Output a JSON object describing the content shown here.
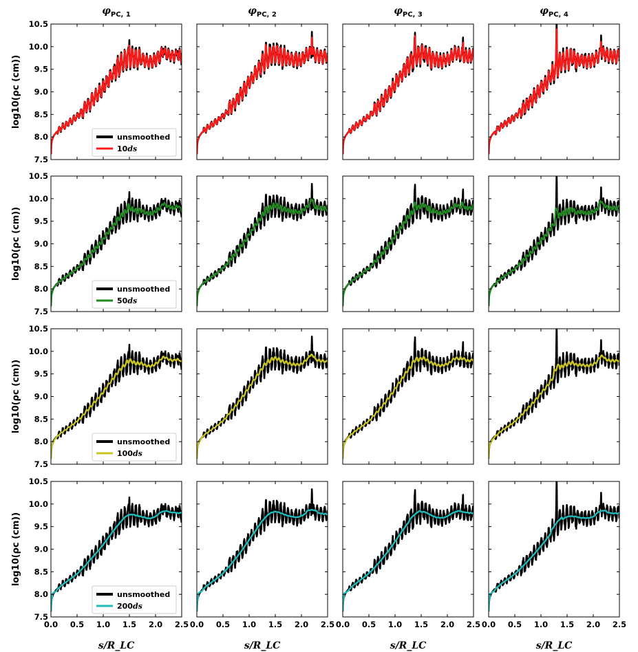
{
  "chart_data": {
    "type": "line",
    "layout": "4x4 grid of subplots",
    "x_label": "s/R_LC",
    "y_label": "log10(ρc (cm))",
    "xlim": [
      0.0,
      2.5
    ],
    "ylim": [
      7.5,
      10.5
    ],
    "x_ticks": [
      "0.0",
      "0.5",
      "1.0",
      "1.5",
      "2.0",
      "2.5"
    ],
    "y_ticks": [
      "7.5",
      "8.0",
      "8.5",
      "9.0",
      "9.5",
      "10.0",
      "10.5"
    ],
    "columns": [
      {
        "symbol": "φ",
        "sub": "PC, 1",
        "base_shift": 0.0,
        "spikes": [
          [
            1.5,
            0.3
          ],
          [
            2.15,
            0.2
          ],
          [
            2.42,
            0.2
          ]
        ]
      },
      {
        "symbol": "φ",
        "sub": "PC, 2",
        "base_shift": 0.12,
        "spikes": [
          [
            1.32,
            0.2
          ],
          [
            2.2,
            0.6
          ],
          [
            1.9,
            0.15
          ]
        ]
      },
      {
        "symbol": "φ",
        "sub": "PC, 3",
        "base_shift": 0.08,
        "spikes": [
          [
            1.38,
            0.4
          ],
          [
            1.55,
            0.3
          ],
          [
            2.3,
            0.35
          ]
        ]
      },
      {
        "symbol": "φ",
        "sub": "PC, 4",
        "base_shift": -0.05,
        "spikes": [
          [
            1.3,
            1.0
          ],
          [
            2.15,
            0.45
          ],
          [
            1.6,
            0.15
          ]
        ]
      }
    ],
    "rows": [
      {
        "legend": [
          "unsmoothed",
          "10",
          "ds"
        ],
        "color": "#ff1a1a",
        "window": 10
      },
      {
        "legend": [
          "unsmoothed",
          "50",
          "ds"
        ],
        "color": "#1e8b1e",
        "window": 50
      },
      {
        "legend": [
          "unsmoothed",
          "100",
          "ds"
        ],
        "color": "#c8c424",
        "window": 100
      },
      {
        "legend": [
          "unsmoothed",
          "200",
          "ds"
        ],
        "color": "#1fbcbc",
        "window": 200
      }
    ],
    "trend": {
      "description": "radius of curvature rises steeply from 7.5 at s=0 to ~8.0, then roughly linearly to ~9.75 near s=1.5, then plateaus near 9.7-9.85 with bumps",
      "x": [
        0.0,
        0.005,
        0.02,
        0.05,
        0.1,
        0.2,
        0.3,
        0.5,
        0.75,
        1.0,
        1.2,
        1.4,
        1.5,
        1.7,
        1.9,
        2.05,
        2.15,
        2.3,
        2.5
      ],
      "y": [
        7.5,
        7.8,
        7.93,
        8.02,
        8.1,
        8.2,
        8.28,
        8.45,
        8.75,
        9.1,
        9.42,
        9.72,
        9.76,
        9.72,
        9.67,
        9.75,
        9.86,
        9.8,
        9.78
      ]
    }
  }
}
